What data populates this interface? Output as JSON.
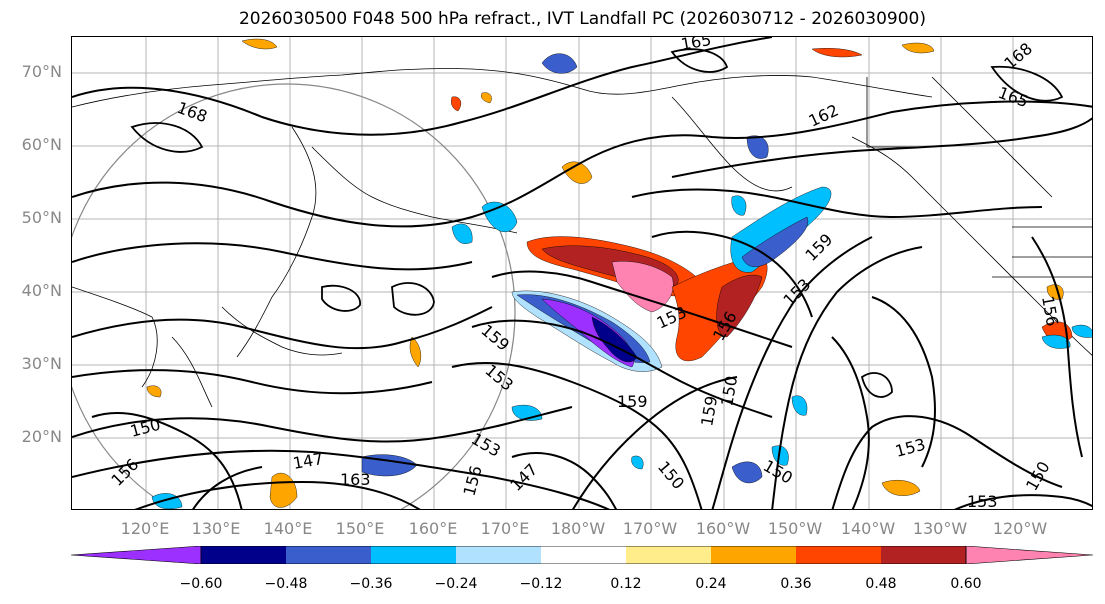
{
  "title": "2026030500 F048 500 hPa refract., IVT Landfall PC (2026030712 - 2026030900)",
  "map": {
    "lat_labels": [
      "70°N",
      "60°N",
      "50°N",
      "40°N",
      "30°N",
      "20°N"
    ],
    "lon_labels": [
      "120°E",
      "130°E",
      "140°E",
      "150°E",
      "160°E",
      "170°E",
      "180°W",
      "170°W",
      "160°W",
      "150°W",
      "140°W",
      "130°W",
      "120°W"
    ],
    "contour_labels": [
      "165",
      "168",
      "162",
      "168",
      "165",
      "159",
      "153",
      "153",
      "156",
      "159",
      "153",
      "159",
      "150",
      "159",
      "150",
      "150",
      "153",
      "153",
      "150",
      "147",
      "163",
      "156",
      "150",
      "156",
      "147",
      "153",
      "156"
    ]
  },
  "colorbar": {
    "colors": [
      "#9b30ff",
      "#00008b",
      "#3a5fcd",
      "#00bfff",
      "#b0e2ff",
      "#ffffff",
      "#ffec8b",
      "#ffa500",
      "#ff4500",
      "#b22222",
      "#ff83b0"
    ],
    "tick_labels": [
      "−0.60",
      "−0.48",
      "−0.36",
      "−0.24",
      "−0.12",
      "0.12",
      "0.24",
      "0.36",
      "0.48",
      "0.60"
    ]
  }
}
